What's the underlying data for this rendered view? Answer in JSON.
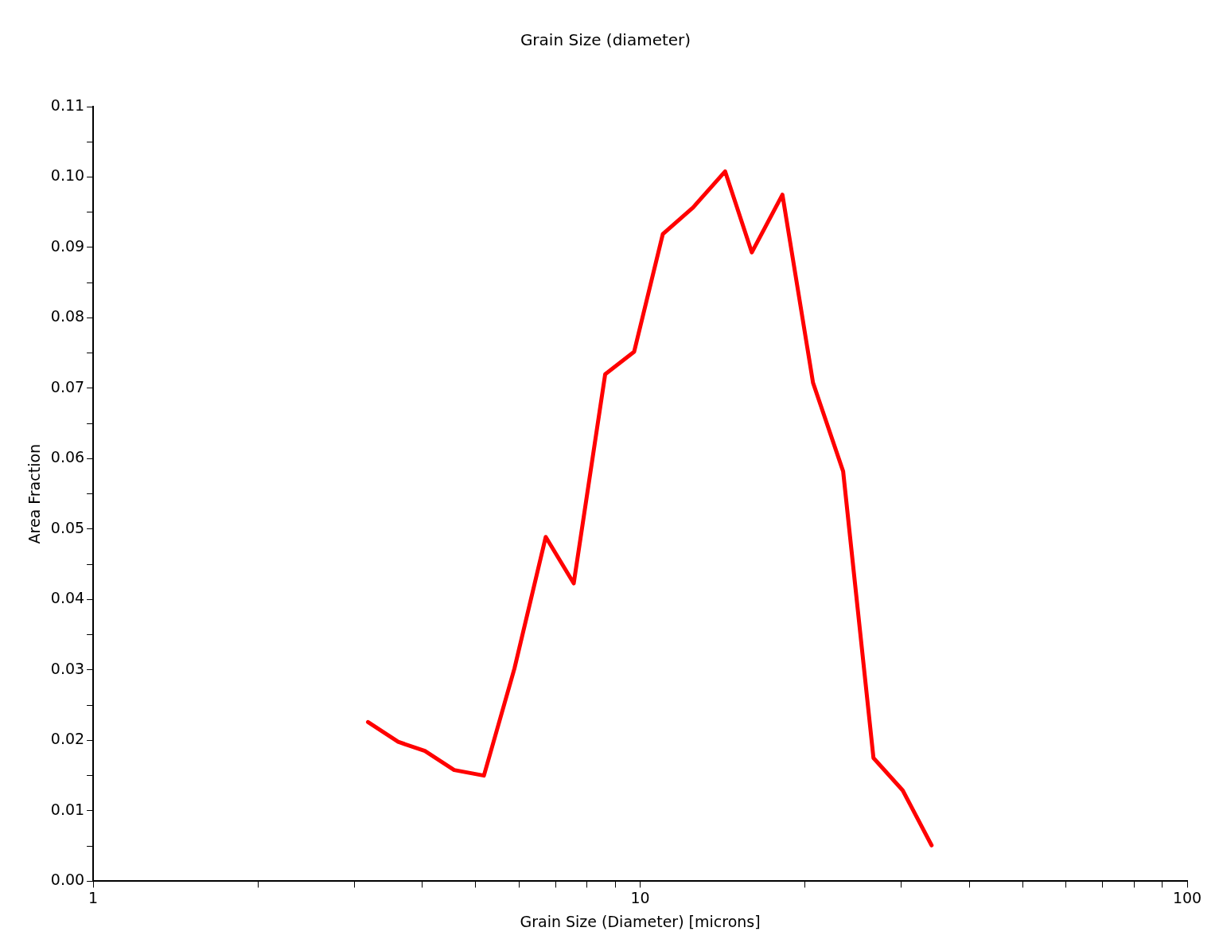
{
  "chart_data": {
    "type": "line",
    "title": "Grain Size (diameter)",
    "xlabel": "Grain Size (Diameter) [microns]",
    "ylabel": "Area Fraction",
    "log": "x",
    "x": [
      3.18,
      3.61,
      4.04,
      4.57,
      5.18,
      5.89,
      6.72,
      7.56,
      8.63,
      9.75,
      11.0,
      12.5,
      14.3,
      16.0,
      18.2,
      20.7,
      23.5,
      26.7,
      30.2,
      34.1
    ],
    "series": [
      {
        "color": "#ff0000",
        "values": [
          0.0226,
          0.0198,
          0.0185,
          0.0158,
          0.015,
          0.0302,
          0.0489,
          0.0423,
          0.072,
          0.0752,
          0.0919,
          0.0957,
          0.1008,
          0.0893,
          0.0975,
          0.0708,
          0.0582,
          0.0175,
          0.0129,
          0.0051
        ]
      }
    ],
    "xlim": [
      1,
      100
    ],
    "xticks": [
      1,
      {
        "value": 2,
        "label": null
      },
      {
        "value": 3,
        "label": null
      },
      {
        "value": 4,
        "label": null
      },
      {
        "value": 5,
        "label": null
      },
      {
        "value": 6,
        "label": null
      },
      {
        "value": 7,
        "label": null
      },
      {
        "value": 8,
        "label": null
      },
      {
        "value": 9,
        "label": null
      },
      10,
      {
        "value": 20,
        "label": null
      },
      {
        "value": 30,
        "label": null
      },
      {
        "value": 40,
        "label": null
      },
      {
        "value": 50,
        "label": null
      },
      {
        "value": 60,
        "label": null
      },
      {
        "value": 70,
        "label": null
      },
      {
        "value": 80,
        "label": null
      },
      {
        "value": 90,
        "label": null
      },
      100
    ],
    "ylim": [
      0,
      0.11
    ],
    "yticks": [
      {
        "value": 0,
        "label": "0.00"
      },
      {
        "value": 0.005,
        "label": null
      },
      {
        "value": 0.01,
        "label": "0.01"
      },
      {
        "value": 0.015,
        "label": null
      },
      {
        "value": 0.02,
        "label": "0.02"
      },
      {
        "value": 0.025,
        "label": null
      },
      {
        "value": 0.03,
        "label": "0.03"
      },
      {
        "value": 0.035,
        "label": null
      },
      {
        "value": 0.04,
        "label": "0.04"
      },
      {
        "value": 0.045,
        "label": null
      },
      {
        "value": 0.05,
        "label": "0.05"
      },
      {
        "value": 0.055,
        "label": null
      },
      {
        "value": 0.06,
        "label": "0.06"
      },
      {
        "value": 0.065,
        "label": null
      },
      {
        "value": 0.07,
        "label": "0.07"
      },
      {
        "value": 0.075,
        "label": null
      },
      {
        "value": 0.08,
        "label": "0.08"
      },
      {
        "value": 0.085,
        "label": null
      },
      {
        "value": 0.09,
        "label": "0.09"
      },
      {
        "value": 0.095,
        "label": null
      },
      {
        "value": 0.1,
        "label": "0.10"
      },
      {
        "value": 0.105,
        "label": null
      },
      {
        "value": 0.11,
        "label": "0.11"
      }
    ],
    "marker": "none",
    "line_style": "solid",
    "grid": false,
    "legend": false
  }
}
